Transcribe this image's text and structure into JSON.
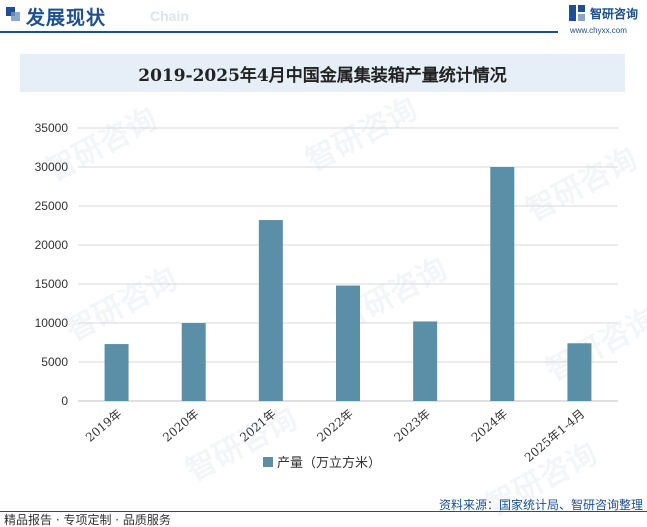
{
  "header": {
    "title": "发展现状",
    "subtitle": "Chain",
    "brand_name": "智研咨询",
    "brand_url": "www.chyxx.com"
  },
  "colors": {
    "bar": "#5b8fa8",
    "brand": "#1d4f91",
    "title_bg": "#e6eef7"
  },
  "footer": {
    "source": "资料来源：国家统计局、智研咨询整理",
    "tagline": "精品报告 · 专项定制 · 品质服务"
  },
  "watermark": "智研咨询",
  "chart_data": {
    "type": "bar",
    "title": "2019-2025年4月中国金属集装箱产量统计情况",
    "categories": [
      "2019年",
      "2020年",
      "2021年",
      "2022年",
      "2023年",
      "2024年",
      "2025年1-4月"
    ],
    "series": [
      {
        "name": "产量（万立方米）",
        "values": [
          7300,
          10000,
          23200,
          14800,
          10200,
          30000,
          7400
        ]
      }
    ],
    "ylim": [
      0,
      35000
    ],
    "yticks": [
      "0",
      "5000",
      "10000",
      "15000",
      "20000",
      "25000",
      "30000",
      "35000"
    ],
    "grid": true,
    "legend_position": "bottom"
  }
}
